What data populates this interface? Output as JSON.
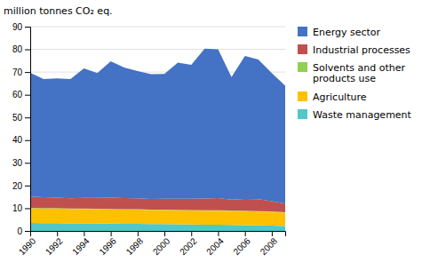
{
  "chart_data": {
    "type": "area",
    "stacked": true,
    "y_label": "million tonnes CO₂ eq.",
    "x": [
      1990,
      1991,
      1992,
      1993,
      1994,
      1995,
      1996,
      1997,
      1998,
      1999,
      2000,
      2001,
      2002,
      2003,
      2004,
      2005,
      2006,
      2007,
      2008,
      2009
    ],
    "series": [
      {
        "name": "Waste management",
        "color": "#4ec8c8",
        "values": [
          3.5,
          3.4,
          3.4,
          3.3,
          3.3,
          3.3,
          3.2,
          3.1,
          3.1,
          3.0,
          3.0,
          2.9,
          2.8,
          2.7,
          2.7,
          2.6,
          2.5,
          2.4,
          2.3,
          2.2
        ]
      },
      {
        "name": "Agriculture",
        "color": "#ffc000",
        "values": [
          6.5,
          6.5,
          6.5,
          6.4,
          6.4,
          6.3,
          6.3,
          6.3,
          6.3,
          6.2,
          6.2,
          6.2,
          6.2,
          6.2,
          6.2,
          6.2,
          6.2,
          6.1,
          6.1,
          5.8
        ]
      },
      {
        "name": "Solvents and other\nproducts use",
        "color": "#92d050",
        "values": [
          0.2,
          0.2,
          0.2,
          0.2,
          0.2,
          0.2,
          0.2,
          0.2,
          0.2,
          0.2,
          0.2,
          0.2,
          0.2,
          0.2,
          0.2,
          0.2,
          0.2,
          0.2,
          0.2,
          0.2
        ]
      },
      {
        "name": "Industrial processes",
        "color": "#c0504d",
        "values": [
          5.0,
          4.8,
          4.6,
          4.5,
          4.7,
          4.8,
          5.0,
          4.9,
          4.8,
          4.7,
          4.8,
          4.9,
          5.0,
          5.2,
          5.4,
          4.8,
          5.2,
          5.3,
          4.5,
          3.8
        ]
      },
      {
        "name": "Energy sector",
        "color": "#4472c4",
        "values": [
          54.5,
          52.0,
          52.5,
          52.5,
          57.0,
          55.0,
          60.0,
          57.5,
          56.0,
          55.0,
          55.0,
          60.0,
          59.0,
          66.0,
          65.5,
          54.0,
          63.0,
          61.5,
          56.5,
          52.0
        ]
      }
    ],
    "xlim": [
      1990,
      2009
    ],
    "xticks": [
      1990,
      1992,
      1994,
      1996,
      1998,
      2000,
      2002,
      2004,
      2006,
      2008
    ],
    "ylim": [
      0,
      90
    ],
    "yticks": [
      0,
      10,
      20,
      30,
      40,
      50,
      60,
      70,
      80,
      90
    ],
    "grid": "y",
    "legend": "right"
  }
}
